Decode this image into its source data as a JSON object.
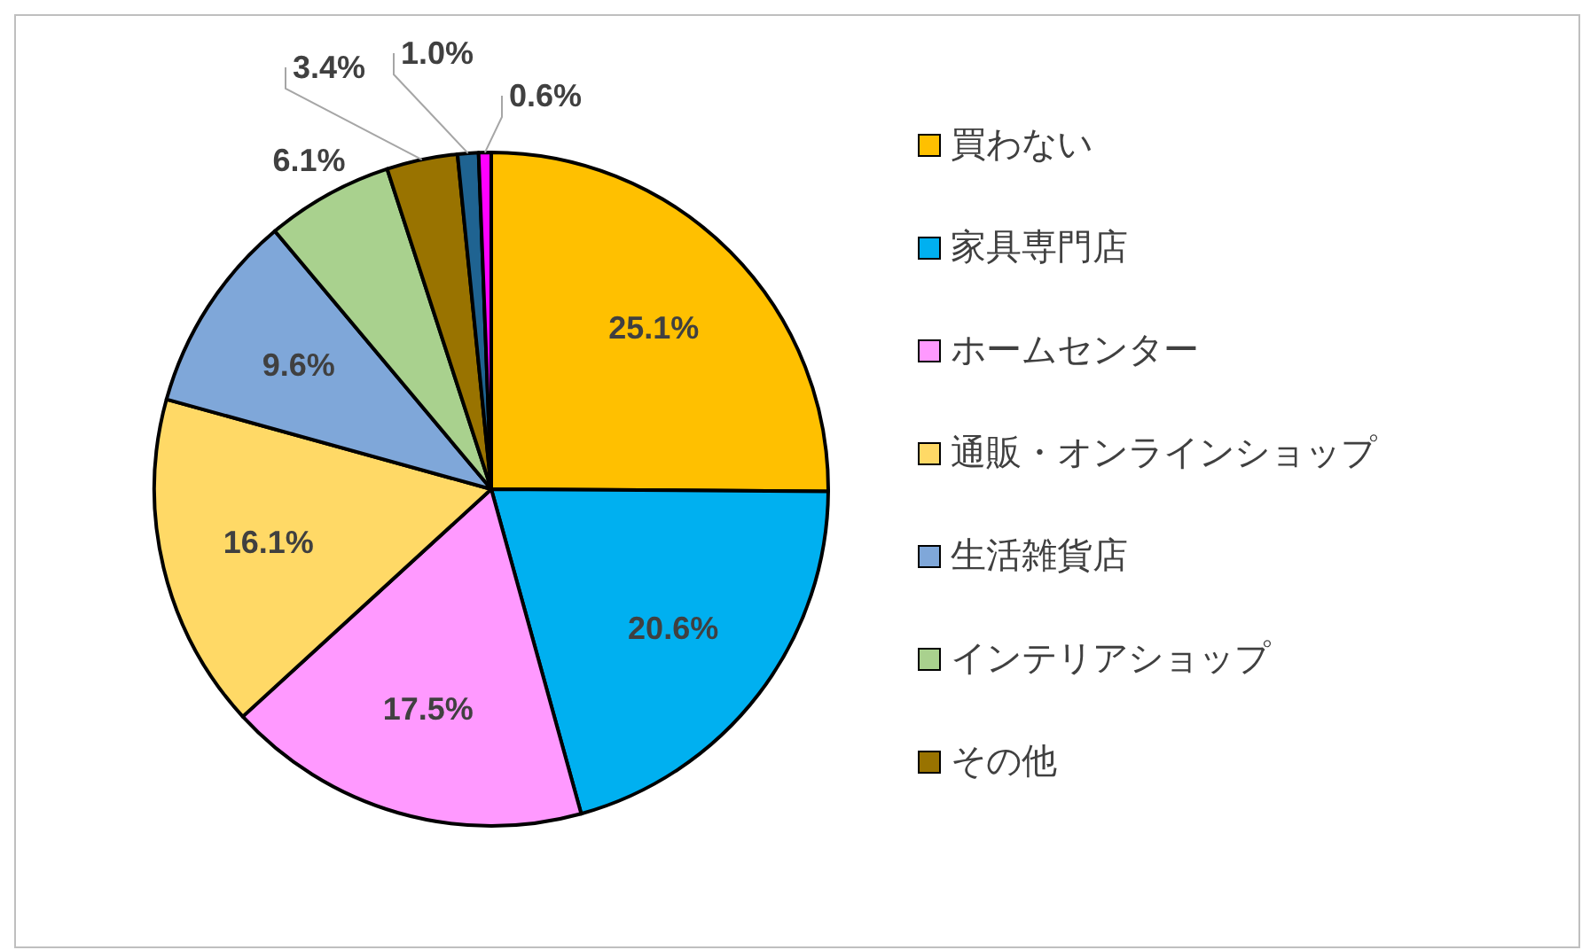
{
  "chart_data": {
    "type": "pie",
    "categories": [
      "買わない",
      "家具専門店",
      "ホームセンター",
      "通販・オンラインショップ",
      "生活雑貨店",
      "インテリアショップ",
      "その他",
      null,
      null
    ],
    "values": [
      25.1,
      20.6,
      17.5,
      16.1,
      9.6,
      6.1,
      3.4,
      1.0,
      0.6
    ],
    "colors": [
      "#ffc000",
      "#00b0f0",
      "#ff99ff",
      "#ffd966",
      "#7fa7d9",
      "#a9d18e",
      "#997300",
      "#1f6391",
      "#ff00ff"
    ],
    "value_labels": [
      "25.1%",
      "20.6%",
      "17.5%",
      "16.1%",
      "9.6%",
      "6.1%",
      "3.4%",
      "1.0%",
      "0.6%"
    ],
    "legend": "right"
  }
}
